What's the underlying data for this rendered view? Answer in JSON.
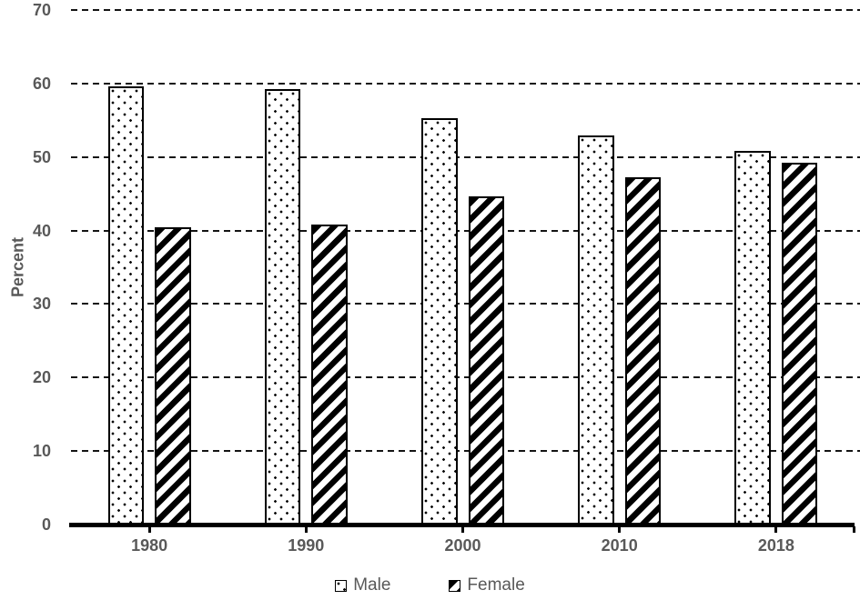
{
  "chart_data": {
    "type": "bar",
    "title": "",
    "categories": [
      "1980",
      "1990",
      "2000",
      "2010",
      "2018"
    ],
    "series": [
      {
        "name": "Male",
        "pattern": "dots",
        "values": [
          59.6,
          59.2,
          55.3,
          52.9,
          50.8
        ]
      },
      {
        "name": "Female",
        "pattern": "diagonal-stripes",
        "values": [
          40.4,
          40.8,
          44.7,
          47.2,
          49.2
        ]
      }
    ],
    "xlabel": "",
    "ylabel": "Percent",
    "ylim": [
      0,
      70
    ],
    "yticks": [
      0,
      10,
      20,
      30,
      40,
      50,
      60,
      70
    ],
    "grid": "horizontal-dashed",
    "legend_position": "bottom",
    "bar_style": "white fill, black outline, black-and-white fill patterns"
  },
  "colors": {
    "background": "#ffffff",
    "axis": "#000000",
    "gridline": "#141414",
    "tick_label": "#595959",
    "legend_text": "#595959",
    "bar_fill": "#ffffff",
    "bar_border": "#000000"
  }
}
